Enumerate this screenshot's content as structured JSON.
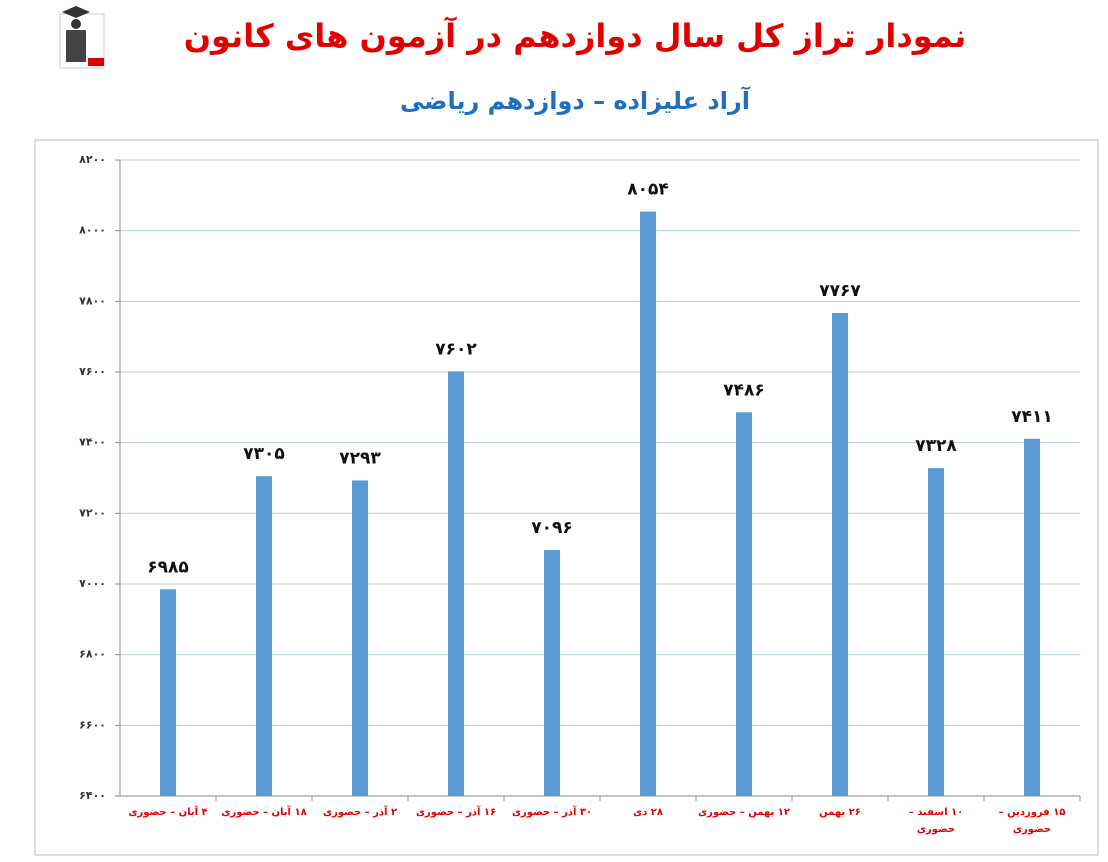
{
  "chart_data": {
    "type": "bar",
    "title": "نمودار تراز کل سال دوازدهم در آزمون های کانون",
    "subtitle": "آراد علیزاده – دوازدهم ریاضی",
    "categories": [
      "۴ آبان – حضوری",
      "۱۸ آبان – حضوری",
      "۲ آذر – حضوری",
      "۱۶ آذر – حضوری",
      "۳۰ آذر – حضوری",
      "۲۸ دی",
      "۱۲ بهمن – حضوری",
      "۲۶ بهمن",
      "۱۰ اسفند – حضوری",
      "۱۵ فروردین – حضوری"
    ],
    "values": [
      6985,
      7305,
      7293,
      7602,
      7096,
      8054,
      7486,
      7767,
      7328,
      7411
    ],
    "value_labels": [
      "۶۹۸۵",
      "۷۳۰۵",
      "۷۲۹۳",
      "۷۶۰۲",
      "۷۰۹۶",
      "۸۰۵۴",
      "۷۴۸۶",
      "۷۷۶۷",
      "۷۳۲۸",
      "۷۴۱۱"
    ],
    "color": "#5b9bd5",
    "ylim": [
      6400,
      8200
    ],
    "yticks": [
      {
        "value": 6400,
        "label": "۶۴۰۰"
      },
      {
        "value": 6600,
        "label": "۶۶۰۰"
      },
      {
        "value": 6800,
        "label": "۶۸۰۰"
      },
      {
        "value": 7000,
        "label": "۷۰۰۰"
      },
      {
        "value": 7200,
        "label": "۷۲۰۰"
      },
      {
        "value": 7400,
        "label": "۷۴۰۰"
      },
      {
        "value": 7600,
        "label": "۷۶۰۰"
      },
      {
        "value": 7800,
        "label": "۷۸۰۰"
      },
      {
        "value": 8000,
        "label": "۸۰۰۰"
      },
      {
        "value": 8200,
        "label": "۸۲۰۰"
      }
    ],
    "grid": true
  }
}
